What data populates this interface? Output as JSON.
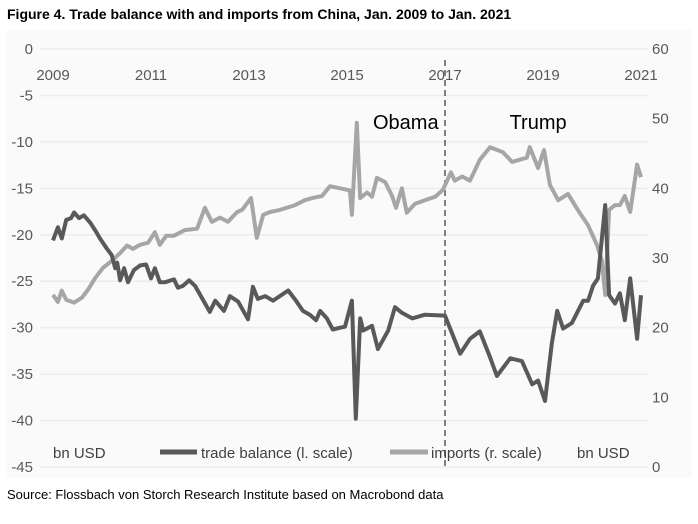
{
  "chart_data": {
    "type": "line",
    "title": "Figure 4. Trade balance with and imports from China, Jan. 2009 to Jan. 2021",
    "source": "Source: Flossbach von Storch Research Institute based on Macrobond data",
    "x_ticks": [
      "2009",
      "2011",
      "2013",
      "2015",
      "2017",
      "2019",
      "2021"
    ],
    "xlim": [
      2009,
      2021
    ],
    "left_axis": {
      "ylim": [
        -45,
        0
      ],
      "ticks": [
        "0",
        "-5",
        "-10",
        "-15",
        "-20",
        "-25",
        "-30",
        "-35",
        "-40",
        "-45"
      ],
      "unit": "bn USD"
    },
    "right_axis": {
      "ylim": [
        0,
        60
      ],
      "ticks": [
        "60",
        "50",
        "40",
        "30",
        "20",
        "10",
        "0"
      ],
      "unit": "bn USD"
    },
    "grid": true,
    "legend_position": "bottom",
    "annotations": [
      {
        "text": "Obama",
        "x": 2016.2
      },
      {
        "text": "Trump",
        "x": 2018.9
      }
    ],
    "divider_x": 2017,
    "series": [
      {
        "name": "trade balance (l. scale)",
        "axis": "left",
        "color": "#595959",
        "x": [
          2009,
          2009.1,
          2009.18,
          2009.27,
          2009.37,
          2009.43,
          2009.53,
          2009.63,
          2009.76,
          2009.86,
          2009.96,
          2010.1,
          2010.2,
          2010.27,
          2010.31,
          2010.37,
          2010.45,
          2010.53,
          2010.65,
          2010.78,
          2010.9,
          2011,
          2011.08,
          2011.18,
          2011.29,
          2011.47,
          2011.55,
          2011.65,
          2011.78,
          2011.9,
          2012.2,
          2012.31,
          2012.49,
          2012.61,
          2012.78,
          2012.98,
          2013.08,
          2013.18,
          2013.33,
          2013.49,
          2013.8,
          2013.96,
          2014.1,
          2014.24,
          2014.37,
          2014.45,
          2014.59,
          2014.71,
          2014.86,
          2014.96,
          2015.1,
          2015.18,
          2015.27,
          2015.33,
          2015.51,
          2015.63,
          2015.84,
          2015.98,
          2016.12,
          2016.33,
          2016.59,
          2017,
          2017.31,
          2017.51,
          2017.71,
          2017.92,
          2018.06,
          2018.33,
          2018.57,
          2018.78,
          2018.9,
          2019.04,
          2019.18,
          2019.29,
          2019.41,
          2019.59,
          2019.82,
          2019.92,
          2020.02,
          2020.12,
          2020.27,
          2020.35,
          2020.47,
          2020.57,
          2020.67,
          2020.78,
          2020.92,
          2021
        ],
        "y": [
          -20.6,
          -19.2,
          -20.4,
          -18.4,
          -18.2,
          -17.6,
          -18.2,
          -17.9,
          -18.7,
          -19.5,
          -20.4,
          -21.5,
          -22.2,
          -23.6,
          -23,
          -24.9,
          -23.6,
          -25.1,
          -23.8,
          -23.3,
          -23.2,
          -24.7,
          -23.6,
          -25.1,
          -25.1,
          -24.8,
          -25.7,
          -25.5,
          -24.9,
          -25.5,
          -28.3,
          -27.1,
          -28.2,
          -26.6,
          -27.2,
          -29.1,
          -25.6,
          -26.9,
          -26.6,
          -27.1,
          -26,
          -27.1,
          -28.2,
          -28.6,
          -29.2,
          -28.2,
          -29,
          -30.2,
          -30,
          -29.9,
          -27.1,
          -39.8,
          -29,
          -30.3,
          -29.8,
          -32.3,
          -30.3,
          -27.8,
          -28.4,
          -29,
          -28.6,
          -28.7,
          -32.8,
          -31.2,
          -30.4,
          -33.2,
          -35.2,
          -33.3,
          -33.6,
          -36.1,
          -35.7,
          -37.9,
          -31.7,
          -28.2,
          -30.1,
          -29.5,
          -27.1,
          -27.1,
          -25.5,
          -24.7,
          -16.8,
          -26.5,
          -27.4,
          -26.3,
          -29.2,
          -24.7,
          -31.2,
          -26.5
        ]
      },
      {
        "name": "imports (r. scale)",
        "axis": "right",
        "color": "#a6a6a6",
        "x": [
          2009,
          2009.1,
          2009.18,
          2009.27,
          2009.43,
          2009.59,
          2009.71,
          2009.86,
          2010.02,
          2010.22,
          2010.37,
          2010.51,
          2010.63,
          2010.78,
          2010.94,
          2011.08,
          2011.18,
          2011.31,
          2011.47,
          2011.69,
          2011.94,
          2012.1,
          2012.24,
          2012.41,
          2012.57,
          2012.76,
          2012.86,
          2013.04,
          2013.16,
          2013.29,
          2013.43,
          2013.63,
          2013.94,
          2014.14,
          2014.29,
          2014.49,
          2014.65,
          2014.86,
          2015.06,
          2015.1,
          2015.2,
          2015.27,
          2015.41,
          2015.51,
          2015.61,
          2015.78,
          2015.92,
          2016,
          2016.12,
          2016.22,
          2016.39,
          2016.59,
          2016.8,
          2016.96,
          2017.12,
          2017.2,
          2017.35,
          2017.51,
          2017.71,
          2017.92,
          2018.18,
          2018.37,
          2018.67,
          2018.73,
          2018.9,
          2019.02,
          2019.14,
          2019.31,
          2019.51,
          2019.71,
          2019.92,
          2020.1,
          2020.2,
          2020.27,
          2020.35,
          2020.47,
          2020.57,
          2020.67,
          2020.78,
          2020.92,
          2021
        ],
        "y": [
          24.7,
          23.7,
          25.3,
          24,
          23.6,
          24.3,
          25.4,
          27.1,
          28.6,
          29.7,
          30.7,
          31.8,
          31.3,
          31.9,
          32.2,
          33.7,
          31.9,
          33.2,
          33.2,
          34,
          34.2,
          37.2,
          35.2,
          35.8,
          35.2,
          36.6,
          36.9,
          38.6,
          32.9,
          36.2,
          36.6,
          36.9,
          37.6,
          38.3,
          38.6,
          38.9,
          40.3,
          40,
          39.7,
          36.2,
          49.4,
          38.6,
          39.4,
          38.8,
          41.5,
          40.9,
          38.9,
          37.2,
          40,
          36.5,
          37.8,
          38.3,
          38.8,
          39.8,
          42.3,
          41.1,
          41.7,
          41.1,
          44.1,
          45.9,
          45.2,
          43.8,
          44.4,
          45.9,
          42.9,
          45.5,
          40.5,
          38.3,
          39.2,
          36.9,
          34.7,
          31.9,
          29.7,
          24.7,
          36.9,
          37.6,
          37.6,
          38.9,
          36.6,
          43.4,
          41.6
        ]
      }
    ]
  }
}
